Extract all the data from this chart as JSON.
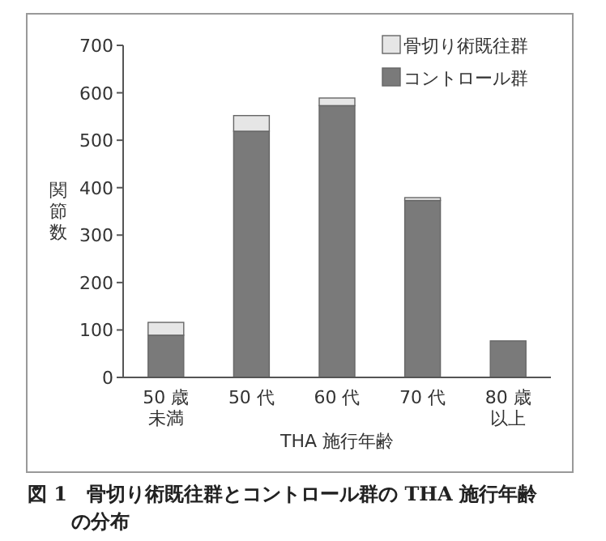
{
  "chart_data": {
    "type": "bar",
    "stacked": true,
    "categories": [
      "50 歳未満",
      "50 代",
      "60 代",
      "70 代",
      "80 歳以上"
    ],
    "series": [
      {
        "name": "コントロール群",
        "color": "#7a7a7a",
        "values": [
          89,
          519,
          573,
          373,
          77
        ]
      },
      {
        "name": "骨切り術既往群",
        "color": "#e6e6e6",
        "values": [
          27,
          33,
          16,
          6,
          0
        ]
      }
    ],
    "ylim": [
      0,
      700
    ],
    "yticks": [
      0,
      100,
      200,
      300,
      400,
      500,
      600,
      700
    ],
    "xlabel": "THA 施行年齢",
    "ylabel": "関節数",
    "legend": "top right",
    "grid": false,
    "annotations": [
      "図 1　骨切り術既往群とコントロール群の THA 施行年齢の分布"
    ]
  }
}
